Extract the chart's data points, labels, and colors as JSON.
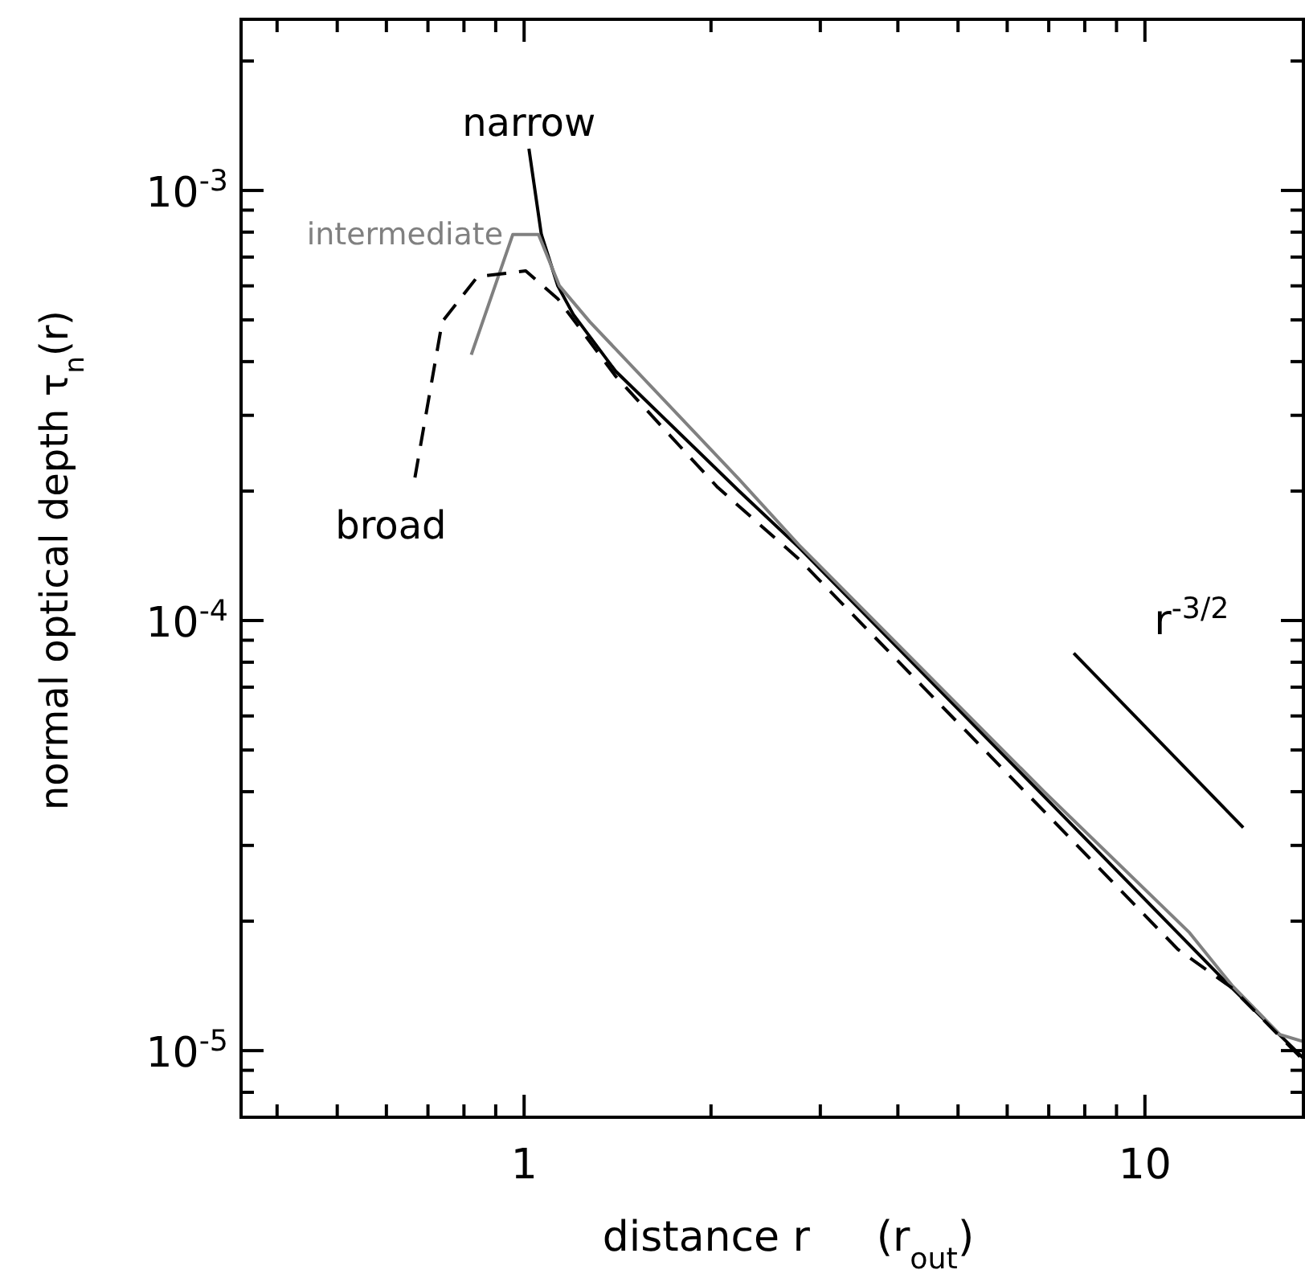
{
  "chart_data": {
    "type": "line",
    "xlabel": "distance r     (r$_{out}$)",
    "ylabel": "normal optical depth τ$_{n}$(r)",
    "log": "xy",
    "grid": false,
    "xlim": [
      0.35,
      18
    ],
    "ylim": [
      7e-06,
      0.0025
    ],
    "xticks": [
      {
        "value": 0.4,
        "label": null
      },
      {
        "value": 0.5,
        "label": null
      },
      {
        "value": 0.6,
        "label": null
      },
      {
        "value": 0.7,
        "label": null
      },
      {
        "value": 0.8,
        "label": null
      },
      {
        "value": 0.9,
        "label": null
      },
      1,
      {
        "value": 2,
        "label": null
      },
      {
        "value": 3,
        "label": null
      },
      {
        "value": 4,
        "label": null
      },
      {
        "value": 5,
        "label": null
      },
      {
        "value": 6,
        "label": null
      },
      {
        "value": 7,
        "label": null
      },
      {
        "value": 8,
        "label": null
      },
      {
        "value": 9,
        "label": null
      },
      10
    ],
    "yticks": [
      {
        "value": 7e-06,
        "label": null
      },
      {
        "value": 8e-06,
        "label": null
      },
      {
        "value": 9e-06,
        "label": null
      },
      {
        "value": 1e-05,
        "label": "10$^{-5}$"
      },
      {
        "value": 2e-05,
        "label": null
      },
      {
        "value": 3e-05,
        "label": null
      },
      {
        "value": 4e-05,
        "label": null
      },
      {
        "value": 5e-05,
        "label": null
      },
      {
        "value": 6e-05,
        "label": null
      },
      {
        "value": 7e-05,
        "label": null
      },
      {
        "value": 8e-05,
        "label": null
      },
      {
        "value": 9e-05,
        "label": null
      },
      {
        "value": 0.0001,
        "label": "10$^{-4}$"
      },
      {
        "value": 0.0002,
        "label": null
      },
      {
        "value": 0.0003,
        "label": null
      },
      {
        "value": 0.0004,
        "label": null
      },
      {
        "value": 0.0005,
        "label": null
      },
      {
        "value": 0.0006,
        "label": null
      },
      {
        "value": 0.0007,
        "label": null
      },
      {
        "value": 0.0008,
        "label": null
      },
      {
        "value": 0.0009,
        "label": null
      },
      {
        "value": 0.001,
        "label": "10$^{-3}$"
      },
      {
        "value": 0.002,
        "label": null
      }
    ],
    "series": [
      {
        "name": "narrow",
        "color": "#000000",
        "line_style": "solid",
        "x": [
          1.018,
          1.066,
          1.133,
          1.2,
          1.404,
          2.22,
          2.77,
          6.88,
          13.4,
          18
        ],
        "values": [
          0.00125,
          0.00079,
          0.0006,
          0.000515,
          0.00038,
          0.0002,
          0.000148,
          3.9e-05,
          1.46e-05,
          9.6e-06
        ]
      },
      {
        "name": "intermediate",
        "color": "#808080",
        "line_style": "solid",
        "x": [
          0.822,
          0.959,
          1.055,
          1.14,
          1.276,
          2.22,
          2.77,
          6.88,
          11.8,
          13.8,
          16.5,
          18
        ],
        "values": [
          0.000415,
          0.00079,
          0.00079,
          0.0006,
          0.000495,
          0.000213,
          0.00015,
          4e-05,
          1.88e-05,
          1.42e-05,
          1.09e-05,
          1.05e-05
        ]
      },
      {
        "name": "broad",
        "color": "#000000",
        "line_style": "dashed",
        "x": [
          0.667,
          0.738,
          0.841,
          1.006,
          1.133,
          1.404,
          2.05,
          2.77,
          6.88,
          11.3,
          13.8,
          18
        ],
        "values": [
          0.000215,
          0.000495,
          0.00063,
          0.00065,
          0.00056,
          0.00037,
          0.000204,
          0.000139,
          3.6e-05,
          1.72e-05,
          1.4e-05,
          9.5e-06
        ]
      },
      {
        "color": "#000000",
        "line_style": "solid",
        "x": [
          7.68,
          14.4
        ],
        "values": [
          8.4e-05,
          3.3e-05
        ]
      }
    ],
    "annotations": [
      "r$^{-3/2}$"
    ]
  }
}
